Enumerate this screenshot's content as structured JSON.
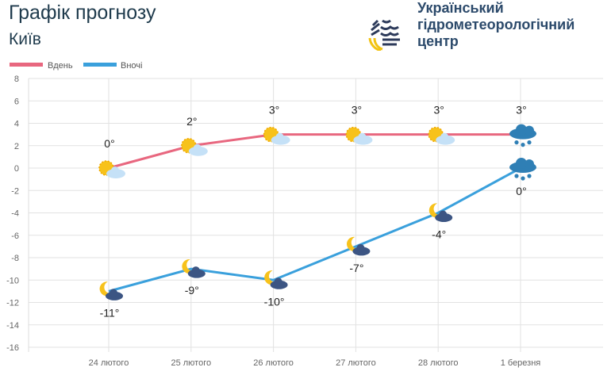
{
  "header": {
    "title": "Графік прогнозу",
    "city": "Київ",
    "org_lines": [
      "Український",
      "гідрометеорологічний",
      "центр"
    ]
  },
  "colors": {
    "day": "#e8677f",
    "night": "#3aa0dc",
    "title": "#1e3a4c"
  },
  "chart_data": {
    "type": "line",
    "categories": [
      "24 лютого",
      "25 лютого",
      "26 лютого",
      "27 лютого",
      "28 лютого",
      "1 березня"
    ],
    "series": [
      {
        "name": "Вдень",
        "values": [
          0,
          2,
          3,
          3,
          3,
          3
        ],
        "labels": [
          "0°",
          "2°",
          "3°",
          "3°",
          "3°",
          "3°"
        ],
        "icons": [
          "sun-cloud",
          "sun-cloud",
          "sun-cloud",
          "sun-cloud",
          "sun-cloud",
          "rain-snow-cloud"
        ]
      },
      {
        "name": "Вночі",
        "values": [
          -11,
          -9,
          -10,
          -7,
          -4,
          0
        ],
        "labels": [
          "-11°",
          "-9°",
          "-10°",
          "-7°",
          "-4°",
          "0°"
        ],
        "icons": [
          "moon-cloud",
          "moon-cloud",
          "moon-cloud",
          "moon-cloud",
          "moon-cloud",
          "rain-snow-cloud"
        ]
      }
    ],
    "yticks": [
      8,
      6,
      4,
      2,
      0,
      -2,
      -4,
      -6,
      -8,
      -10,
      -12,
      -14,
      -16
    ],
    "ylim": [
      -16,
      8
    ],
    "grid": true,
    "legend": "top-left"
  }
}
